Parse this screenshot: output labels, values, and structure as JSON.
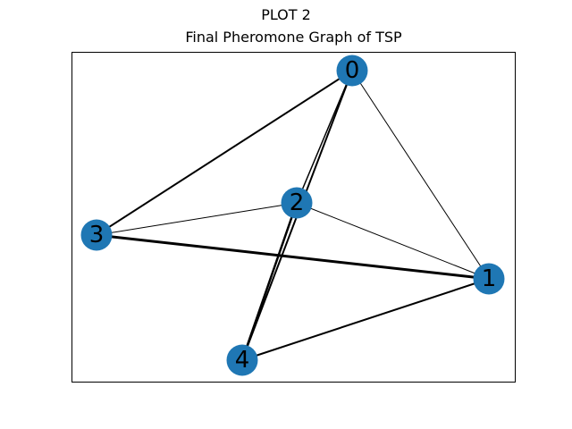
{
  "figure": {
    "suptitle": "PLOT 2",
    "title": "Final Pheromone Graph of TSP"
  },
  "graph": {
    "node_color": "#1f77b4",
    "edge_color": "#000000",
    "nodes": [
      {
        "id": "0",
        "label": "0"
      },
      {
        "id": "1",
        "label": "1"
      },
      {
        "id": "2",
        "label": "2"
      },
      {
        "id": "3",
        "label": "3"
      },
      {
        "id": "4",
        "label": "4"
      }
    ],
    "edges": [
      {
        "source": "0",
        "target": "1",
        "weight": 1
      },
      {
        "source": "0",
        "target": "2",
        "weight": 1.5
      },
      {
        "source": "0",
        "target": "3",
        "weight": 2
      },
      {
        "source": "0",
        "target": "4",
        "weight": 2
      },
      {
        "source": "1",
        "target": "2",
        "weight": 1
      },
      {
        "source": "1",
        "target": "3",
        "weight": 3
      },
      {
        "source": "1",
        "target": "4",
        "weight": 2
      },
      {
        "source": "2",
        "target": "3",
        "weight": 1
      },
      {
        "source": "2",
        "target": "4",
        "weight": 2.5
      }
    ]
  }
}
